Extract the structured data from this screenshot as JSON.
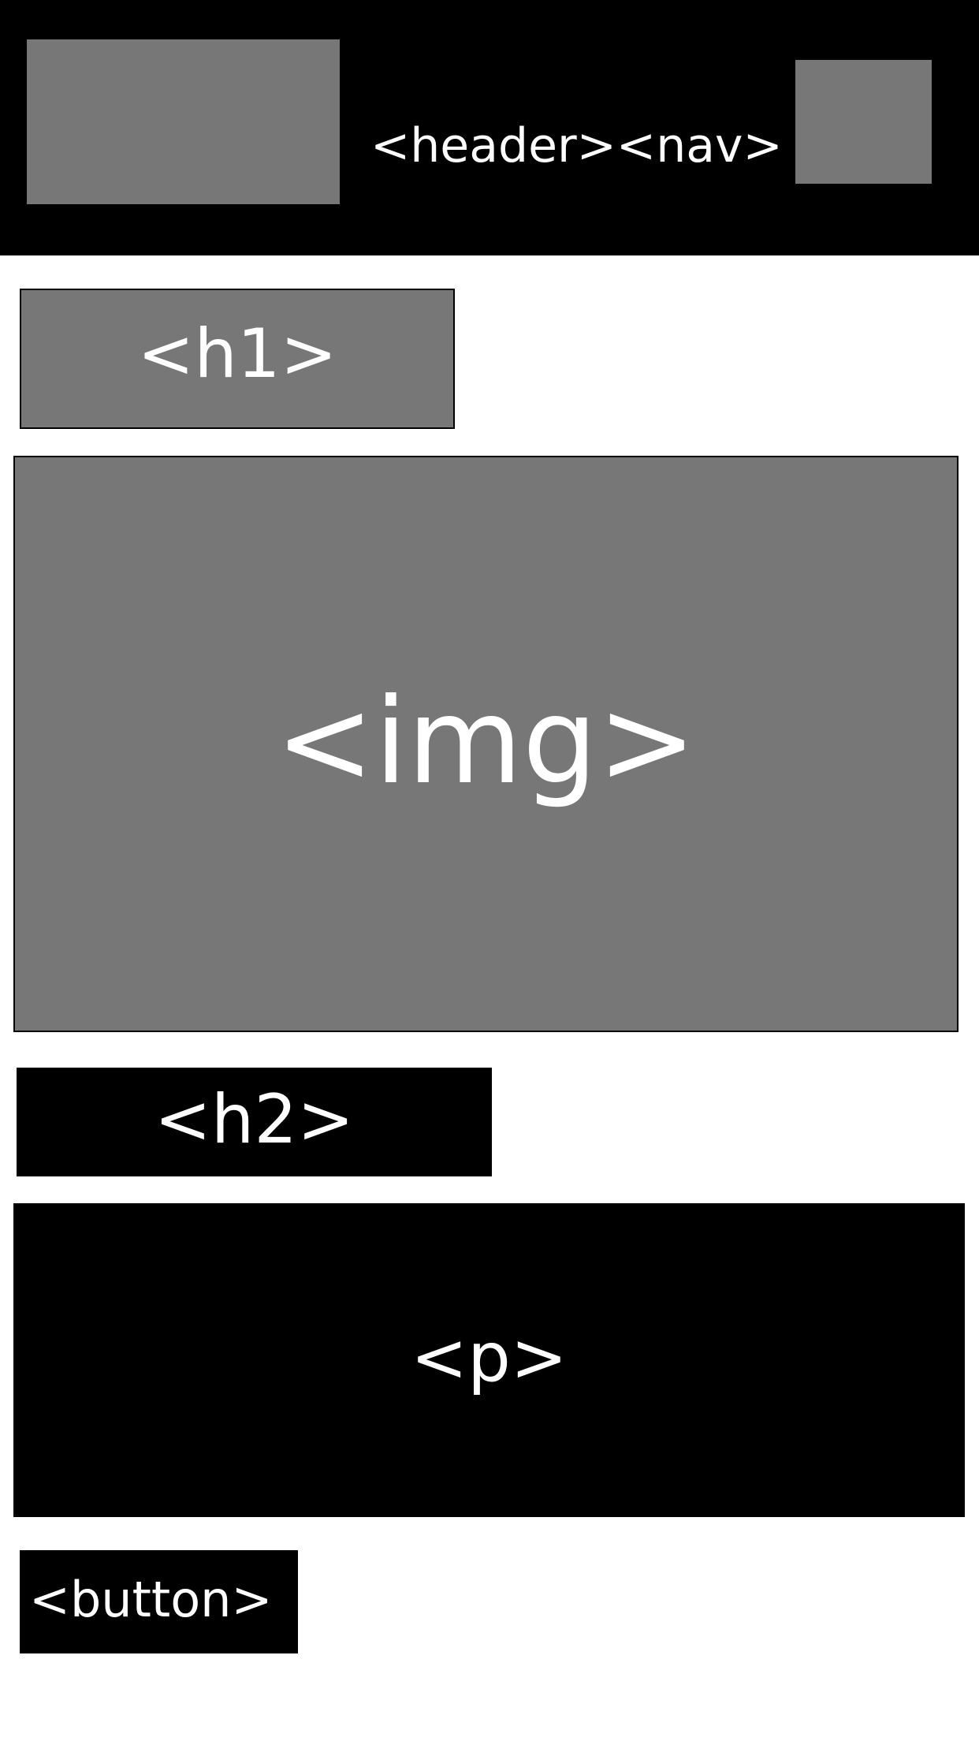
{
  "header": {
    "label": "<header><nav>"
  },
  "sections": {
    "h1_label": "<h1>",
    "img_label": "<img>",
    "h2_label": "<h2>",
    "p_label": "<p>",
    "button_label": "<button>"
  },
  "colors": {
    "dark": "#000000",
    "placeholder_gray": "#777777",
    "text": "#ffffff",
    "background": "#ffffff"
  }
}
